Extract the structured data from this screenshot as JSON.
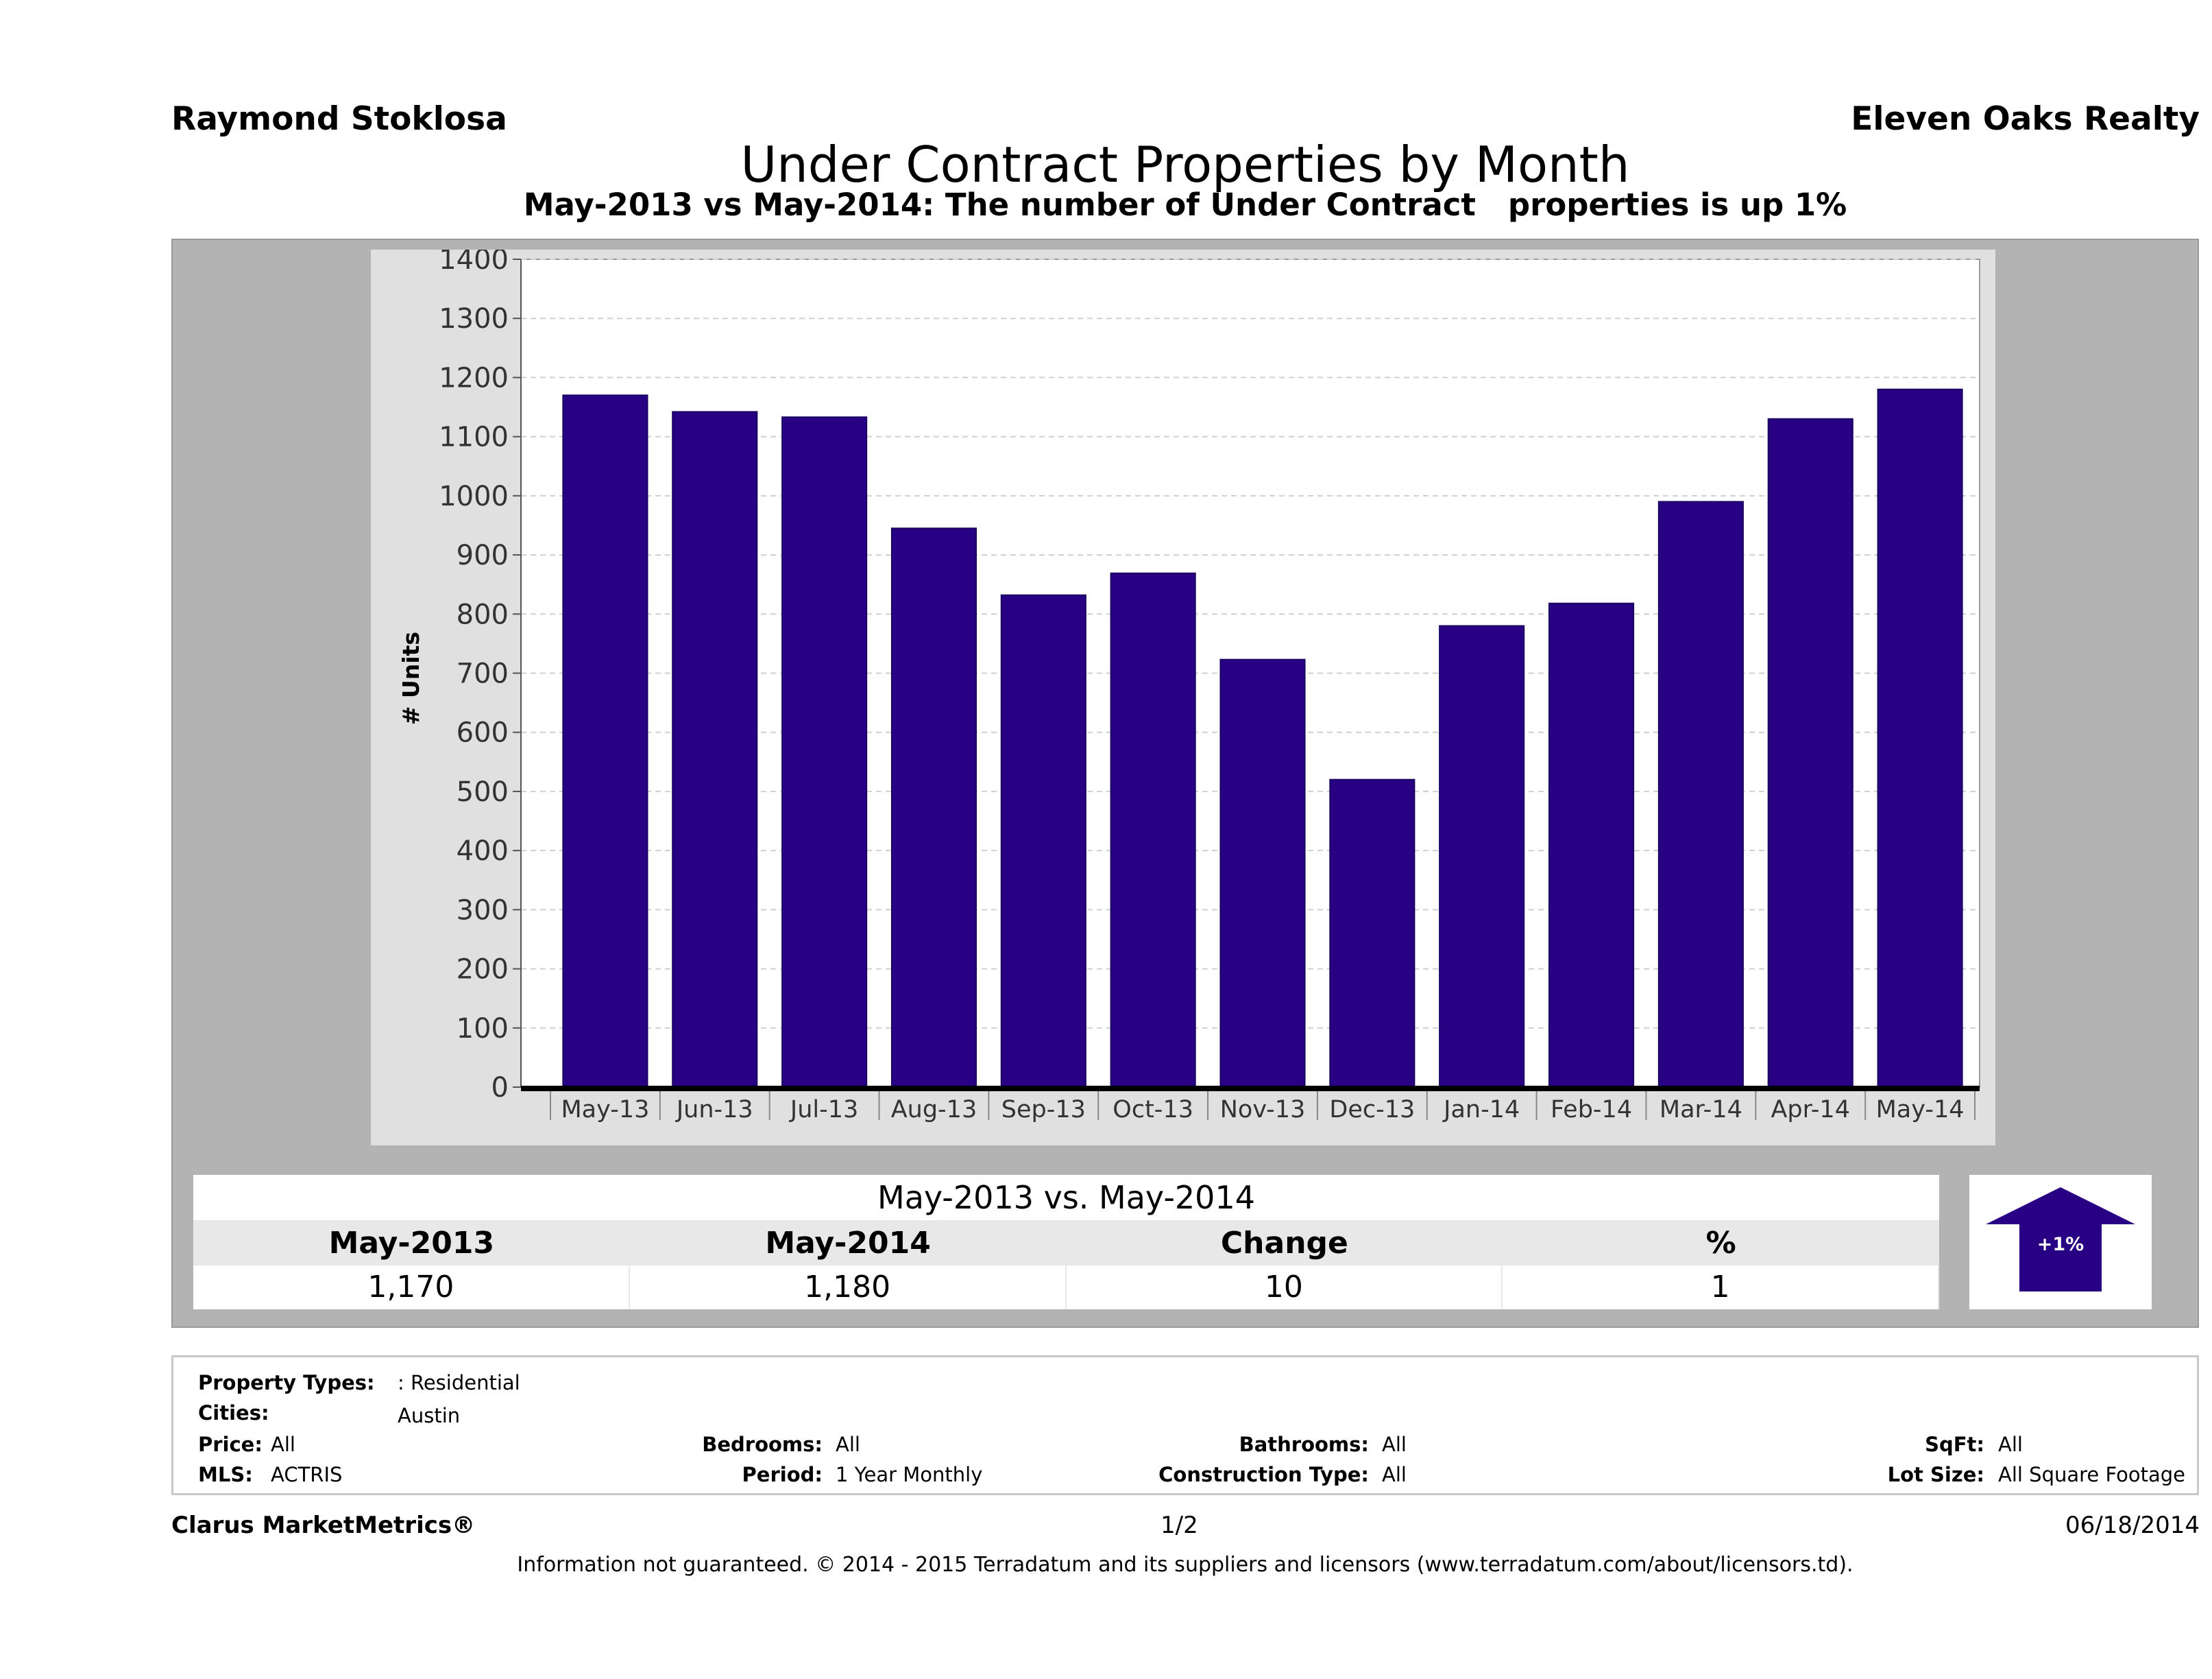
{
  "header": {
    "agent_name": "Raymond Stoklosa",
    "company": "Eleven Oaks Realty",
    "title": "Under Contract Properties by Month",
    "subtitle": "May-2013 vs May-2014: The number of Under Contract   properties is up 1%"
  },
  "chart_data": {
    "type": "bar",
    "title": "",
    "xlabel": "",
    "ylabel": "# Units",
    "categories": [
      "May-13",
      "Jun-13",
      "Jul-13",
      "Aug-13",
      "Sep-13",
      "Oct-13",
      "Nov-13",
      "Dec-13",
      "Jan-14",
      "Feb-14",
      "Mar-14",
      "Apr-14",
      "May-14"
    ],
    "values": [
      1170,
      1142,
      1133,
      945,
      832,
      869,
      723,
      520,
      780,
      818,
      990,
      1130,
      1180
    ],
    "ylim": [
      0,
      1400
    ],
    "yticks": [
      0,
      100,
      200,
      300,
      400,
      500,
      600,
      700,
      800,
      900,
      1000,
      1100,
      1200,
      1300,
      1400
    ],
    "grid": true,
    "bar_color": "#270083"
  },
  "summary": {
    "title": "May-2013 vs. May-2014",
    "headers": [
      "May-2013",
      "May-2014",
      "Change",
      "%"
    ],
    "values": [
      "1,170",
      "1,180",
      "10",
      "1"
    ],
    "badge": "+1%"
  },
  "filters": {
    "property_types_label": "Property Types:",
    "property_types_value": ": Residential",
    "cities_label": "Cities:",
    "cities_value": "Austin",
    "price_label": "Price:",
    "price_value": "All",
    "bedrooms_label": "Bedrooms:",
    "bedrooms_value": "All",
    "bathrooms_label": "Bathrooms:",
    "bathrooms_value": "All",
    "sqft_label": "SqFt:",
    "sqft_value": "All",
    "mls_label": "MLS:",
    "mls_value": "ACTRIS",
    "period_label": "Period:",
    "period_value": "1 Year Monthly",
    "construction_label": "Construction Type:",
    "construction_value": "All",
    "lot_size_label": "Lot Size:",
    "lot_size_value": "All Square Footage"
  },
  "footer": {
    "brand": "Clarus MarketMetrics®",
    "page": "1/2",
    "date": "06/18/2014",
    "disclaimer": "Information not guaranteed. © 2014 - 2015 Terradatum and its suppliers and licensors (www.terradatum.com/about/licensors.td)."
  }
}
